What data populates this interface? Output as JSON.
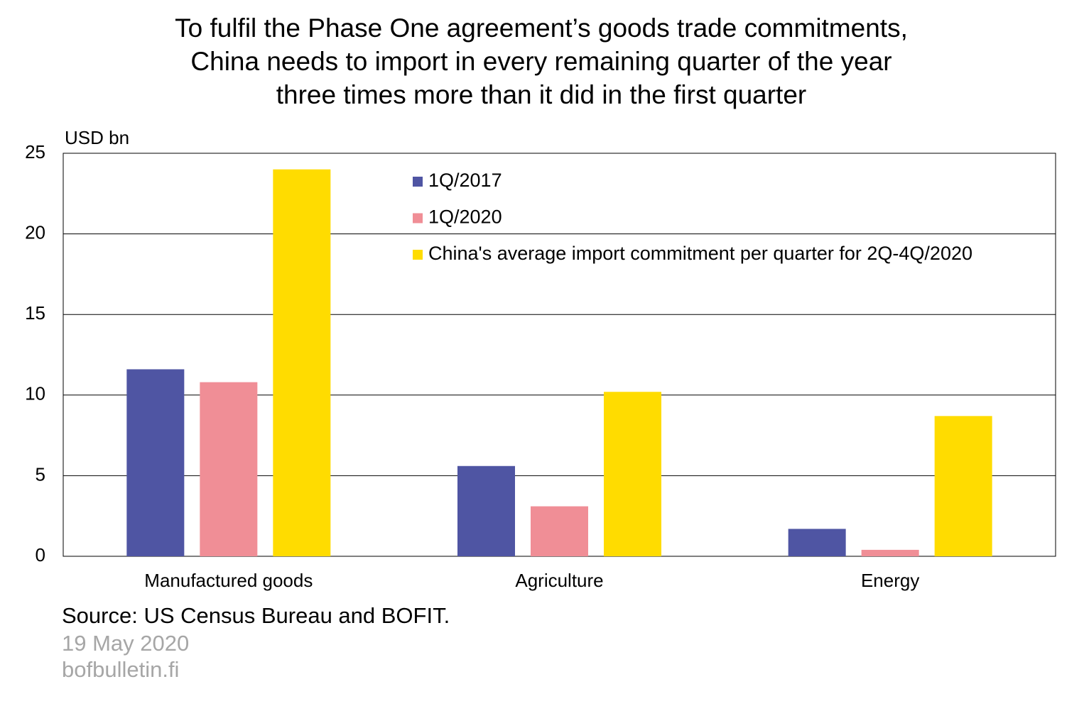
{
  "chart_data": {
    "type": "bar",
    "title": [
      "To fulfil the Phase One agreement’s goods trade commitments,",
      "China needs to import in every remaining quarter of the year",
      "three times more than it did in the first quarter"
    ],
    "y_label": "USD bn",
    "categories": [
      "Manufactured goods",
      "Agriculture",
      "Energy"
    ],
    "series": [
      {
        "name": "1Q/2017",
        "color": "#4f55a3",
        "values": [
          11.6,
          5.6,
          1.7
        ]
      },
      {
        "name": "1Q/2020",
        "color": "#f08e96",
        "values": [
          10.8,
          3.1,
          0.4
        ]
      },
      {
        "name": "China's average import commitment per quarter for 2Q-4Q/2020",
        "color": "#ffdc00",
        "values": [
          24.0,
          10.2,
          8.7
        ]
      }
    ],
    "ylim": [
      0,
      25
    ],
    "yticks": [
      0,
      5,
      10,
      15,
      20,
      25
    ],
    "grid": true,
    "source": "Source: US Census Bureau and BOFIT.",
    "date": "19 May 2020",
    "site": "bofbulletin.fi"
  }
}
